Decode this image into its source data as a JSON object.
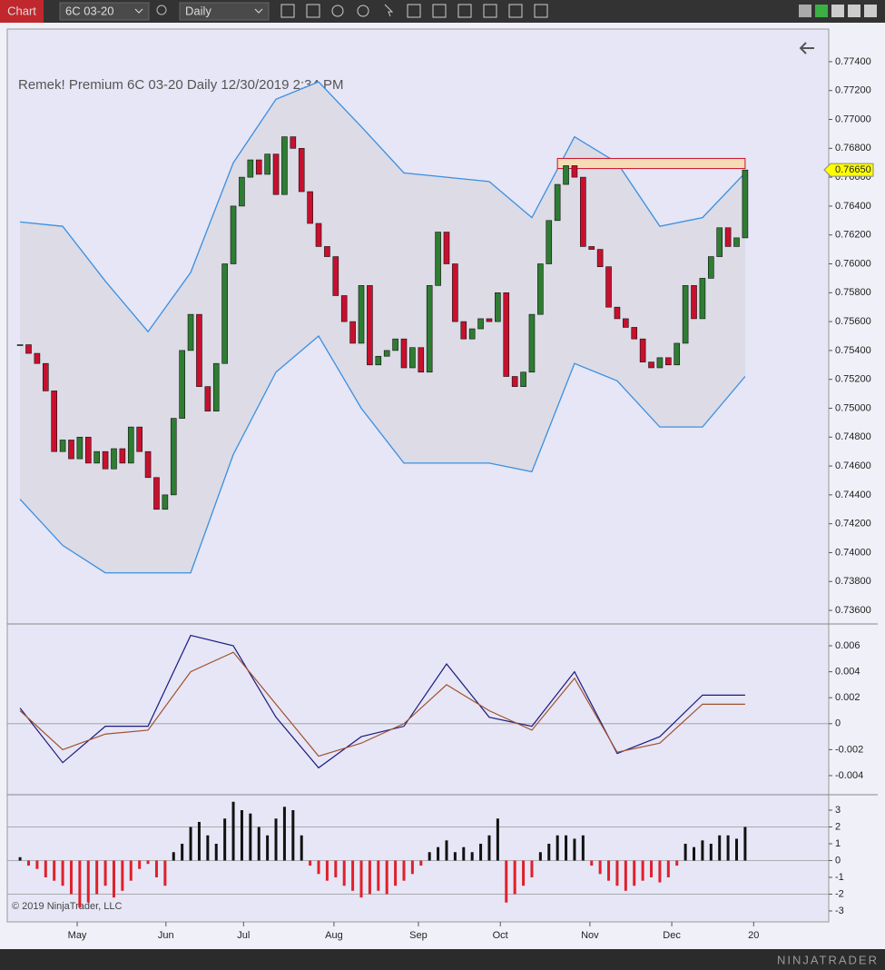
{
  "toolbar": {
    "tab": "Chart",
    "instrument": "6C 03-20",
    "interval": "Daily"
  },
  "branding": "NINJATRADER",
  "copyright": "© 2019 NinjaTrader, LLC",
  "chart_data": [
    {
      "type": "candlestick",
      "title": "Remek!  Premium  6C 03-20  Daily  12/30/2019 2:34 PM",
      "ylim": [
        0.73506,
        0.77626
      ],
      "yticks": [
        {
          "value": 0.774,
          "label": "0.77400"
        },
        {
          "value": 0.772,
          "label": "0.77200"
        },
        {
          "value": 0.77,
          "label": "0.77000"
        },
        {
          "value": 0.768,
          "label": "0.76800"
        },
        {
          "value": 0.766,
          "label": "0.76600"
        },
        {
          "value": 0.764,
          "label": "0.76400"
        },
        {
          "value": 0.762,
          "label": "0.76200"
        },
        {
          "value": 0.76,
          "label": "0.76000"
        },
        {
          "value": 0.758,
          "label": "0.75800"
        },
        {
          "value": 0.756,
          "label": "0.75600"
        },
        {
          "value": 0.754,
          "label": "0.75400"
        },
        {
          "value": 0.752,
          "label": "0.75200"
        },
        {
          "value": 0.75,
          "label": "0.75000"
        },
        {
          "value": 0.748,
          "label": "0.74800"
        },
        {
          "value": 0.746,
          "label": "0.74600"
        },
        {
          "value": 0.744,
          "label": "0.74400"
        },
        {
          "value": 0.742,
          "label": "0.74200"
        },
        {
          "value": 0.74,
          "label": "0.74000"
        },
        {
          "value": 0.738,
          "label": "0.73800"
        },
        {
          "value": 0.736,
          "label": "0.73600"
        }
      ],
      "last_price": {
        "value": 0.7665,
        "label": "0.76650"
      },
      "x": [
        0,
        1,
        2,
        3,
        4,
        5,
        6,
        7,
        8,
        9,
        10,
        11,
        12,
        13,
        14,
        15,
        16,
        17,
        18,
        19,
        20,
        21,
        22,
        23,
        24,
        25,
        26,
        27,
        28,
        29,
        30,
        31,
        32,
        33,
        34,
        35,
        36,
        37,
        38,
        39,
        40,
        41,
        42,
        43,
        44,
        45,
        46,
        47,
        48,
        49,
        50,
        51,
        52,
        53,
        54,
        55,
        56,
        57,
        58,
        59,
        60,
        61,
        62,
        63,
        64,
        65,
        66,
        67,
        68,
        69,
        70,
        71,
        72,
        73,
        74,
        75,
        76,
        77,
        78,
        79,
        80,
        81,
        82,
        83,
        84,
        85
      ],
      "values": [
        0.7544,
        0.7538,
        0.7531,
        0.7512,
        0.747,
        0.7478,
        0.7465,
        0.748,
        0.7462,
        0.747,
        0.7458,
        0.7472,
        0.7462,
        0.7487,
        0.747,
        0.7452,
        0.743,
        0.744,
        0.7493,
        0.754,
        0.7565,
        0.7515,
        0.7498,
        0.7531,
        0.76,
        0.764,
        0.766,
        0.7672,
        0.7662,
        0.7676,
        0.7648,
        0.7688,
        0.768,
        0.765,
        0.7628,
        0.7612,
        0.7605,
        0.7578,
        0.756,
        0.7545,
        0.7585,
        0.753,
        0.7536,
        0.754,
        0.7548,
        0.7528,
        0.7542,
        0.7525,
        0.7585,
        0.7622,
        0.76,
        0.756,
        0.7548,
        0.7555,
        0.7562,
        0.756,
        0.758,
        0.7522,
        0.7515,
        0.7525,
        0.7565,
        0.76,
        0.763,
        0.7655,
        0.7668,
        0.766,
        0.7612,
        0.761,
        0.7598,
        0.757,
        0.7562,
        0.7556,
        0.7548,
        0.7532,
        0.7528,
        0.7535,
        0.753,
        0.7545,
        0.7585,
        0.7562,
        0.759,
        0.7605,
        0.7625,
        0.7612,
        0.7618,
        0.7665
      ],
      "up_color": "#2e7d32",
      "down_color": "#c8102e",
      "band_x": [
        0,
        5,
        10,
        15,
        20,
        25,
        30,
        35,
        40,
        45,
        50,
        55,
        60,
        65,
        70,
        75,
        80,
        85
      ],
      "bands": [
        {
          "color": "#3a8fe0",
          "values": [
            0.7629,
            0.7626,
            0.7588,
            0.7553,
            0.7594,
            0.767,
            0.7714,
            0.7726,
            0.7695,
            0.7663,
            0.766,
            0.7657,
            0.7632,
            0.7688,
            0.767,
            0.7626,
            0.7632,
            0.7663
          ]
        },
        {
          "color": "#3a8fe0",
          "values": [
            0.7437,
            0.7405,
            0.7386,
            0.7386,
            0.7386,
            0.7468,
            0.7525,
            0.755,
            0.75,
            0.7462,
            0.7462,
            0.7462,
            0.7456,
            0.7531,
            0.7519,
            0.7487,
            0.7487,
            0.7522
          ]
        }
      ],
      "band_fill": "#dcdbe6",
      "zone": [
        0.7666,
        0.7673
      ],
      "zone_x": [
        63,
        85
      ],
      "zone_color": "#f5dcb4"
    },
    {
      "type": "line",
      "ylim": [
        -0.00547,
        0.00768
      ],
      "yticks": [
        0.006,
        0.004,
        0.002,
        0,
        -0.002,
        -0.004
      ],
      "hlines": [
        0
      ],
      "x": [
        0,
        5,
        10,
        15,
        20,
        25,
        30,
        35,
        40,
        45,
        50,
        55,
        60,
        65,
        70,
        75,
        80,
        85
      ],
      "series": [
        {
          "color": "#1a1a80",
          "values": [
            0.0012,
            -0.003,
            -0.0002,
            -0.0002,
            0.0068,
            0.006,
            0.0005,
            -0.0034,
            -0.001,
            -0.0002,
            0.0046,
            0.0005,
            -0.0002,
            0.004,
            -0.0023,
            -0.001,
            0.0022,
            0.0022
          ]
        },
        {
          "color": "#a0522d",
          "values": [
            0.001,
            -0.002,
            -0.0008,
            -0.0005,
            0.004,
            0.0055,
            0.0015,
            -0.0025,
            -0.0015,
            0,
            0.003,
            0.001,
            -0.0005,
            0.0035,
            -0.0022,
            -0.0015,
            0.0015,
            0.0015
          ]
        }
      ]
    },
    {
      "type": "bar",
      "ylim": [
        -3.65,
        3.92
      ],
      "yticks": [
        3,
        2,
        1,
        0,
        -1,
        -2,
        -3
      ],
      "hlines": [
        2,
        0,
        -2
      ],
      "xlim": [
        -1.5,
        94.8
      ],
      "xticks": [
        {
          "value": 6.7,
          "label": "May"
        },
        {
          "value": 17.1,
          "label": "Jun"
        },
        {
          "value": 26.2,
          "label": "Jul"
        },
        {
          "value": 36.8,
          "label": "Aug"
        },
        {
          "value": 46.7,
          "label": "Sep"
        },
        {
          "value": 56.3,
          "label": "Oct"
        },
        {
          "value": 66.8,
          "label": "Nov"
        },
        {
          "value": 76.4,
          "label": "Dec"
        },
        {
          "value": 86,
          "label": "20"
        }
      ],
      "x": [
        0,
        1,
        2,
        3,
        4,
        5,
        6,
        7,
        8,
        9,
        10,
        11,
        12,
        13,
        14,
        15,
        16,
        17,
        18,
        19,
        20,
        21,
        22,
        23,
        24,
        25,
        26,
        27,
        28,
        29,
        30,
        31,
        32,
        33,
        34,
        35,
        36,
        37,
        38,
        39,
        40,
        41,
        42,
        43,
        44,
        45,
        46,
        47,
        48,
        49,
        50,
        51,
        52,
        53,
        54,
        55,
        56,
        57,
        58,
        59,
        60,
        61,
        62,
        63,
        64,
        65,
        66,
        67,
        68,
        69,
        70,
        71,
        72,
        73,
        74,
        75,
        76,
        77,
        78,
        79,
        80,
        81,
        82,
        83,
        84,
        85
      ],
      "values": [
        0.2,
        -0.3,
        -0.5,
        -1,
        -1.2,
        -1.5,
        -2,
        -2.8,
        -2.5,
        -2,
        -1.5,
        -2.2,
        -1.8,
        -1.2,
        -0.5,
        -0.2,
        -1,
        -1.5,
        0.5,
        1,
        2,
        2.3,
        1.5,
        1,
        2.5,
        3.5,
        3,
        2.8,
        2,
        1.5,
        2.5,
        3.2,
        3,
        1.5,
        -0.3,
        -0.8,
        -1.2,
        -1,
        -1.5,
        -1.8,
        -2.2,
        -2,
        -1.8,
        -2,
        -1.5,
        -1.2,
        -0.8,
        -0.3,
        0.5,
        0.8,
        1.2,
        0.5,
        0.8,
        0.5,
        1,
        1.5,
        2.5,
        -2.5,
        -2,
        -1.5,
        -1,
        0.5,
        1,
        1.5,
        1.5,
        1.3,
        1.5,
        -0.3,
        -0.8,
        -1.2,
        -1.5,
        -1.8,
        -1.5,
        -1.2,
        -1,
        -1.3,
        -1,
        -0.3,
        1,
        0.8,
        1.2,
        1,
        1.5,
        1.5,
        1.3,
        2
      ],
      "up_color": "#111111",
      "down_color": "#e0202a"
    }
  ]
}
